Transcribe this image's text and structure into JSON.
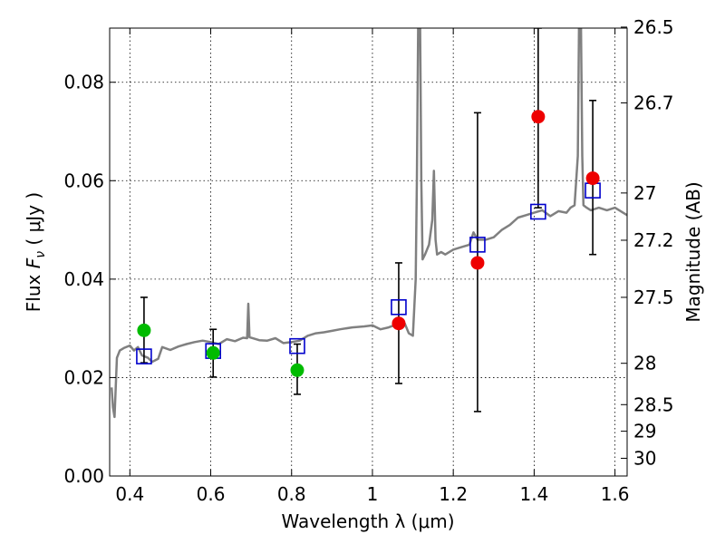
{
  "chart_data": {
    "type": "scatter",
    "xlabel": "Wavelength  λ (μm)",
    "ylabel_left": {
      "prefix": "Flux  ",
      "symbol": "F",
      "sub": "ν",
      "unit": "  ( μJy )"
    },
    "ylabel_right": "Magnitude (AB)",
    "xlim": [
      0.35,
      1.63
    ],
    "ylim": [
      0.0,
      0.091
    ],
    "grid": true,
    "x_ticks": [
      0.4,
      0.6,
      0.8,
      1.0,
      1.2,
      1.4,
      1.6
    ],
    "x_tick_labels": [
      "0.4",
      "0.6",
      "0.8",
      "1",
      "1.2",
      "1.4",
      "1.6"
    ],
    "y_ticks": [
      0.0,
      0.02,
      0.04,
      0.06,
      0.08
    ],
    "y_tick_labels": [
      "0.00",
      "0.02",
      "0.04",
      "0.06",
      "0.08"
    ],
    "mag_ticks": [
      {
        "label": "26.5",
        "flux": 0.0912
      },
      {
        "label": "26.7",
        "flux": 0.0758
      },
      {
        "label": "27",
        "flux": 0.0575
      },
      {
        "label": "27.2",
        "flux": 0.0479
      },
      {
        "label": "27.5",
        "flux": 0.0363
      },
      {
        "label": "28",
        "flux": 0.0229
      },
      {
        "label": "28.5",
        "flux": 0.0145
      },
      {
        "label": "29",
        "flux": 0.0091
      },
      {
        "label": "30",
        "flux": 0.0036
      }
    ],
    "template_spectrum": {
      "color": "#808080",
      "points": [
        [
          0.355,
          0.018
        ],
        [
          0.358,
          0.014
        ],
        [
          0.362,
          0.012
        ],
        [
          0.365,
          0.018
        ],
        [
          0.368,
          0.024
        ],
        [
          0.375,
          0.0255
        ],
        [
          0.385,
          0.026
        ],
        [
          0.4,
          0.0265
        ],
        [
          0.41,
          0.0255
        ],
        [
          0.42,
          0.0262
        ],
        [
          0.43,
          0.0245
        ],
        [
          0.445,
          0.024
        ],
        [
          0.455,
          0.0232
        ],
        [
          0.47,
          0.0238
        ],
        [
          0.48,
          0.0262
        ],
        [
          0.5,
          0.0256
        ],
        [
          0.52,
          0.0263
        ],
        [
          0.54,
          0.0268
        ],
        [
          0.56,
          0.0272
        ],
        [
          0.58,
          0.0275
        ],
        [
          0.6,
          0.0272
        ],
        [
          0.62,
          0.0268
        ],
        [
          0.64,
          0.0278
        ],
        [
          0.66,
          0.0274
        ],
        [
          0.68,
          0.0281
        ],
        [
          0.69,
          0.028
        ],
        [
          0.693,
          0.035
        ],
        [
          0.696,
          0.0282
        ],
        [
          0.72,
          0.0276
        ],
        [
          0.74,
          0.0275
        ],
        [
          0.76,
          0.028
        ],
        [
          0.78,
          0.027
        ],
        [
          0.8,
          0.0272
        ],
        [
          0.82,
          0.0275
        ],
        [
          0.84,
          0.0285
        ],
        [
          0.86,
          0.029
        ],
        [
          0.88,
          0.0292
        ],
        [
          0.9,
          0.0295
        ],
        [
          0.92,
          0.0298
        ],
        [
          0.95,
          0.0302
        ],
        [
          0.98,
          0.0304
        ],
        [
          1.0,
          0.0306
        ],
        [
          1.02,
          0.0298
        ],
        [
          1.04,
          0.0302
        ],
        [
          1.06,
          0.0308
        ],
        [
          1.07,
          0.03
        ],
        [
          1.08,
          0.031
        ],
        [
          1.09,
          0.029
        ],
        [
          1.1,
          0.0285
        ],
        [
          1.107,
          0.04
        ],
        [
          1.11,
          0.06
        ],
        [
          1.113,
          0.091
        ],
        [
          1.118,
          0.091
        ],
        [
          1.121,
          0.06
        ],
        [
          1.124,
          0.044
        ],
        [
          1.13,
          0.045
        ],
        [
          1.14,
          0.047
        ],
        [
          1.148,
          0.052
        ],
        [
          1.152,
          0.062
        ],
        [
          1.156,
          0.048
        ],
        [
          1.16,
          0.045
        ],
        [
          1.17,
          0.0455
        ],
        [
          1.18,
          0.045
        ],
        [
          1.2,
          0.046
        ],
        [
          1.22,
          0.0465
        ],
        [
          1.24,
          0.047
        ],
        [
          1.25,
          0.0495
        ],
        [
          1.26,
          0.048
        ],
        [
          1.28,
          0.048
        ],
        [
          1.3,
          0.0485
        ],
        [
          1.32,
          0.05
        ],
        [
          1.34,
          0.051
        ],
        [
          1.36,
          0.0525
        ],
        [
          1.38,
          0.053
        ],
        [
          1.4,
          0.0535
        ],
        [
          1.42,
          0.054
        ],
        [
          1.44,
          0.0528
        ],
        [
          1.46,
          0.0538
        ],
        [
          1.48,
          0.0535
        ],
        [
          1.49,
          0.0545
        ],
        [
          1.5,
          0.055
        ],
        [
          1.508,
          0.065
        ],
        [
          1.511,
          0.091
        ],
        [
          1.516,
          0.091
        ],
        [
          1.519,
          0.065
        ],
        [
          1.522,
          0.055
        ],
        [
          1.53,
          0.0545
        ],
        [
          1.54,
          0.054
        ],
        [
          1.56,
          0.0545
        ],
        [
          1.58,
          0.054
        ],
        [
          1.6,
          0.0545
        ],
        [
          1.62,
          0.0535
        ],
        [
          1.63,
          0.053
        ]
      ]
    },
    "model_fluxes": {
      "marker": "square",
      "color": "#0000cc",
      "points": [
        {
          "x": 0.435,
          "y": 0.0243
        },
        {
          "x": 0.606,
          "y": 0.0254
        },
        {
          "x": 0.814,
          "y": 0.0264
        },
        {
          "x": 1.065,
          "y": 0.0343
        },
        {
          "x": 1.26,
          "y": 0.047
        },
        {
          "x": 1.41,
          "y": 0.0537
        },
        {
          "x": 1.545,
          "y": 0.058
        }
      ]
    },
    "error_bars": {
      "color": "#000000",
      "bars": [
        {
          "x": 0.435,
          "low": 0.023,
          "high": 0.0363
        },
        {
          "x": 0.606,
          "low": 0.0201,
          "high": 0.0298
        },
        {
          "x": 0.814,
          "low": 0.0166,
          "high": 0.0268
        },
        {
          "x": 1.065,
          "low": 0.0188,
          "high": 0.0433
        },
        {
          "x": 1.26,
          "low": 0.0131,
          "high": 0.0738
        },
        {
          "x": 1.41,
          "low": 0.0545,
          "high": 0.091
        },
        {
          "x": 1.545,
          "low": 0.045,
          "high": 0.0763
        }
      ]
    },
    "observed_green": {
      "marker": "circle",
      "color": "#00bb00",
      "points": [
        {
          "x": 0.435,
          "y": 0.0296
        },
        {
          "x": 0.606,
          "y": 0.025
        },
        {
          "x": 0.814,
          "y": 0.0215
        }
      ]
    },
    "observed_red": {
      "marker": "circle",
      "color": "#ee0000",
      "points": [
        {
          "x": 1.065,
          "y": 0.031
        },
        {
          "x": 1.26,
          "y": 0.0433
        },
        {
          "x": 1.41,
          "y": 0.073
        },
        {
          "x": 1.545,
          "y": 0.0605
        }
      ]
    }
  }
}
